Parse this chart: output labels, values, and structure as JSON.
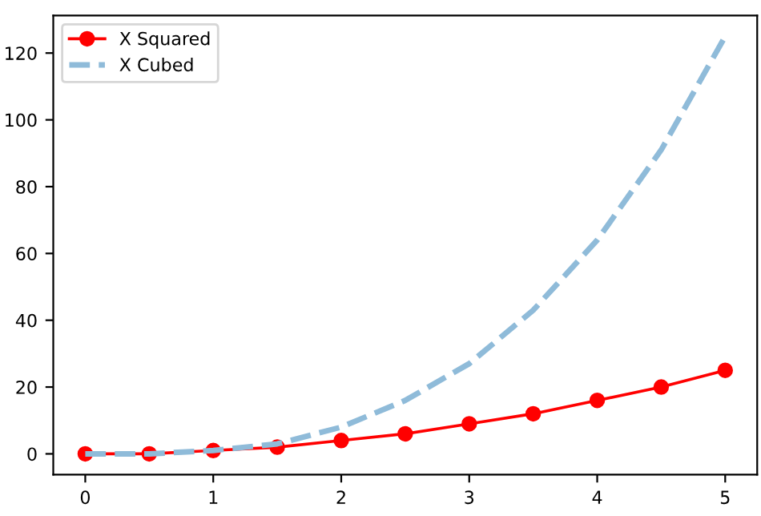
{
  "chart_data": {
    "type": "line",
    "x": [
      0,
      0.5,
      1,
      1.5,
      2,
      2.5,
      3,
      3.5,
      4,
      4.5,
      5
    ],
    "series": [
      {
        "name": "X Squared",
        "color": "#ff0000",
        "marker": "circle",
        "line_style": "solid",
        "values": [
          0,
          0,
          1,
          2,
          4,
          6,
          9,
          12,
          16,
          20,
          25
        ]
      },
      {
        "name": "X Cubed",
        "color": "#8fbbd9",
        "marker": "none",
        "line_style": "dashed",
        "values": [
          0,
          0,
          1,
          3,
          8,
          16,
          27,
          43,
          64,
          91,
          125
        ]
      }
    ],
    "xlim": [
      -0.25,
      5.25
    ],
    "ylim": [
      -6.25,
      131.25
    ],
    "xticks": [
      0,
      1,
      2,
      3,
      4,
      5
    ],
    "yticks": [
      0,
      20,
      40,
      60,
      80,
      100,
      120
    ],
    "grid": false,
    "legend": "top left"
  }
}
